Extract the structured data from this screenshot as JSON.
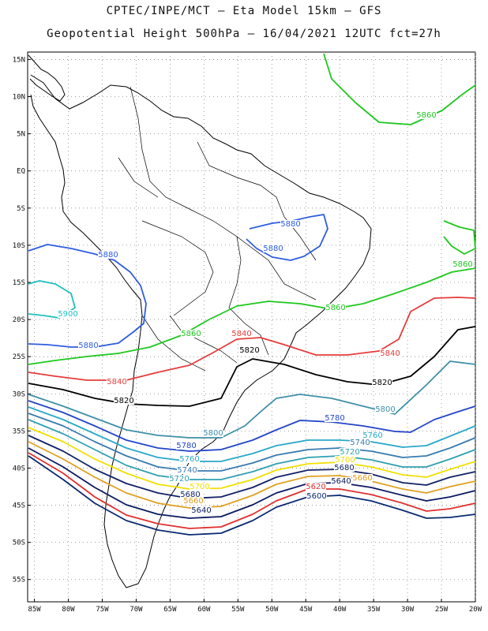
{
  "header": {
    "line1": "CPTEC/INPE/MCT –  Eta Model 15km – GFS",
    "line2": "Geopotential Height 500hPa – 16/04/2021 12UTC fct=27h"
  },
  "axes": {
    "lat_labels": [
      "15N",
      "10N",
      "5N",
      "EQ",
      "5S",
      "10S",
      "15S",
      "20S",
      "25S",
      "30S",
      "35S",
      "40S",
      "45S",
      "50S",
      "55S"
    ],
    "lon_labels": [
      "85W",
      "80W",
      "75W",
      "70W",
      "65W",
      "60W",
      "55W",
      "50W",
      "45W",
      "40W",
      "35W",
      "30W",
      "25W",
      "20W"
    ],
    "lat_range": [
      -58,
      16
    ],
    "lon_range": [
      -86,
      -20
    ]
  },
  "contours": [
    {
      "value": 5900,
      "color": "#1fbfbf",
      "label": "5900"
    },
    {
      "value": 5880,
      "color": "#2f5de0",
      "label": "5880"
    },
    {
      "value": 5860,
      "color": "#1ec81e",
      "label": "5860"
    },
    {
      "value": 5840,
      "color": "#e63c3c",
      "label": "5840"
    },
    {
      "value": 5820,
      "color": "#000000",
      "label": "5820"
    },
    {
      "value": 5800,
      "color": "#3f8fa8",
      "label": "5800"
    },
    {
      "value": 5780,
      "color": "#2445c8",
      "label": "5780"
    },
    {
      "value": 5760,
      "color": "#2aa8c8",
      "label": "5760"
    },
    {
      "value": 5740,
      "color": "#3a7ab0",
      "label": "5740"
    },
    {
      "value": 5720,
      "color": "#2fa0b0",
      "label": "5720"
    },
    {
      "value": 5700,
      "color": "#f0e000",
      "label": "5700"
    },
    {
      "value": 5680,
      "color": "#112266",
      "label": "5680"
    },
    {
      "value": 5660,
      "color": "#e0a020",
      "label": "5660"
    },
    {
      "value": 5640,
      "color": "#0a1a60",
      "label": "5640"
    },
    {
      "value": 5620,
      "color": "#e03030",
      "label": "5620"
    },
    {
      "value": 5600,
      "color": "#0a2a70",
      "label": "5600"
    }
  ]
}
